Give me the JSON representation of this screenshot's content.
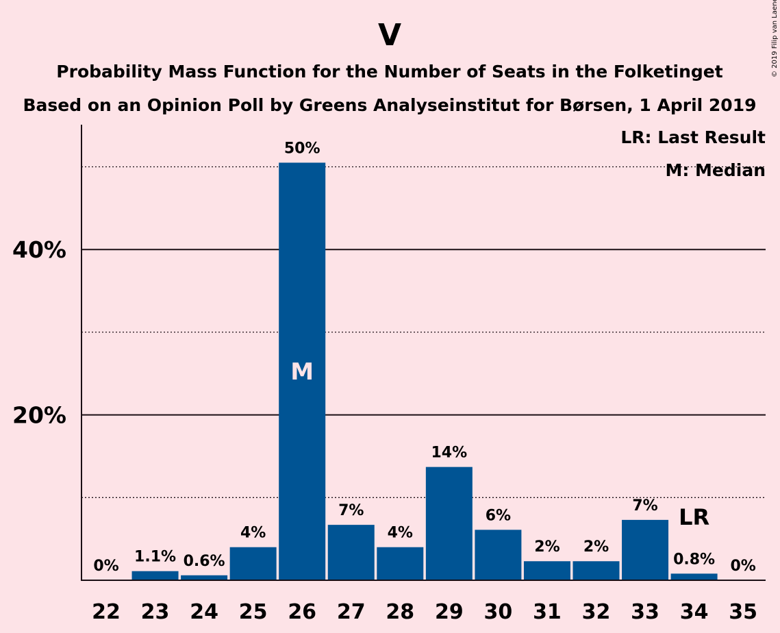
{
  "chart_data": {
    "type": "bar",
    "title": "V",
    "subtitle": "Probability Mass Function for the Number of Seats in the Folketinget",
    "subtitle2": "Based on an Opinion Poll by Greens Analyseinstitut for Børsen, 1 April 2019",
    "categories": [
      "22",
      "23",
      "24",
      "25",
      "26",
      "27",
      "28",
      "29",
      "30",
      "31",
      "32",
      "33",
      "34",
      "35"
    ],
    "values": [
      0,
      1.1,
      0.6,
      4,
      50,
      7,
      4,
      14,
      6,
      2,
      2,
      7,
      0.8,
      0
    ],
    "data_labels": [
      "0%",
      "1.1%",
      "0.6%",
      "4%",
      "50%",
      "7%",
      "4%",
      "14%",
      "6%",
      "2%",
      "2%",
      "7%",
      "0.8%",
      "0%"
    ],
    "heights": [
      0,
      1.1,
      0.6,
      4.0,
      50.5,
      6.7,
      4.0,
      13.7,
      6.1,
      2.3,
      2.3,
      7.3,
      0.8,
      0
    ],
    "ylim": [
      0,
      55
    ],
    "y_ticks": [
      {
        "value": 20,
        "label": "20%"
      },
      {
        "value": 40,
        "label": "40%"
      }
    ],
    "y_dotted_lines": [
      10,
      30,
      50
    ],
    "median_category": "26",
    "median_marker": "M",
    "last_result_category": "34",
    "last_result_marker": "LR",
    "legend": [
      "LR: Last Result",
      "M: Median"
    ],
    "legend_position": "top-right",
    "bar_color": "#005494",
    "median_text_color": "#fde3e7",
    "xlabel": "",
    "ylabel": ""
  },
  "copyright": "© 2019 Filip van Laenen"
}
